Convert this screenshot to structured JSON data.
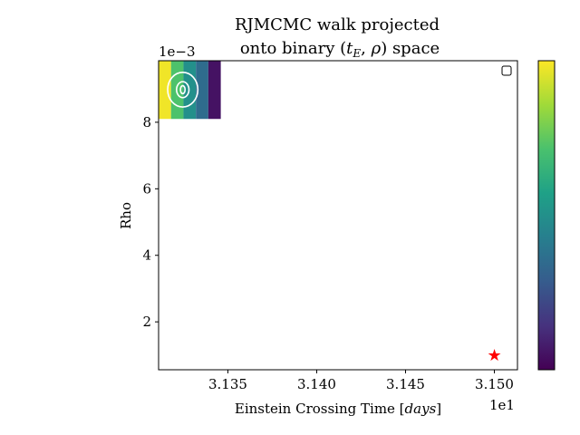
{
  "chart_data": {
    "type": "heatmap",
    "title_line1": "RJMCMC walk projected",
    "title_line2_prefix": "onto binary (",
    "title_line2_te": "t",
    "title_line2_sub": "E",
    "title_line2_mid": ", ",
    "title_line2_rho": "ρ",
    "title_line2_suffix": ") space",
    "xlabel_text": "Einstein Crossing Time [",
    "xlabel_unit": "days",
    "xlabel_close": "]",
    "ylabel": "Rho",
    "x_offset_text": "1e1",
    "y_offset_text": "1e−3",
    "xlim": [
      3.1311,
      3.1513
    ],
    "ylim": [
      0.00056,
      0.00985
    ],
    "x_ticks": [
      3.135,
      3.14,
      3.145,
      3.15
    ],
    "x_tick_labels": [
      "3.135",
      "3.140",
      "3.145",
      "3.150"
    ],
    "y_ticks": [
      0.002,
      0.004,
      0.006,
      0.008
    ],
    "y_tick_labels": [
      "2",
      "4",
      "6",
      "8"
    ],
    "heatmap_cells": [
      {
        "x0": 3.1311,
        "x1": 3.1318,
        "y0": 0.0081,
        "y1": 0.00985,
        "level": 0.98
      },
      {
        "x0": 3.1318,
        "x1": 3.1325,
        "y0": 0.0081,
        "y1": 0.00985,
        "level": 0.72
      },
      {
        "x0": 3.1325,
        "x1": 3.1332,
        "y0": 0.0081,
        "y1": 0.00985,
        "level": 0.5
      },
      {
        "x0": 3.1332,
        "x1": 3.1339,
        "y0": 0.0081,
        "y1": 0.00985,
        "level": 0.35
      },
      {
        "x0": 3.1339,
        "x1": 3.1346,
        "y0": 0.0081,
        "y1": 0.00985,
        "level": 0.05
      }
    ],
    "contours": [
      {
        "cx": 3.13246,
        "cy": 0.00898,
        "rx": 0.00085,
        "ry": 0.00052
      },
      {
        "cx": 3.13246,
        "cy": 0.00898,
        "rx": 0.00035,
        "ry": 0.00024
      },
      {
        "cx": 3.13246,
        "cy": 0.00898,
        "rx": 0.00013,
        "ry": 0.00012
      }
    ],
    "marker": {
      "x": 3.15,
      "y": 0.001,
      "symbol": "★",
      "color": "#ff0000"
    },
    "colorbar_stops": [
      "#440154",
      "#46327e",
      "#365c8d",
      "#277f8e",
      "#1fa187",
      "#4ac16d",
      "#a0da39",
      "#fde725"
    ],
    "legend_placement": "top-right",
    "grid": false
  }
}
